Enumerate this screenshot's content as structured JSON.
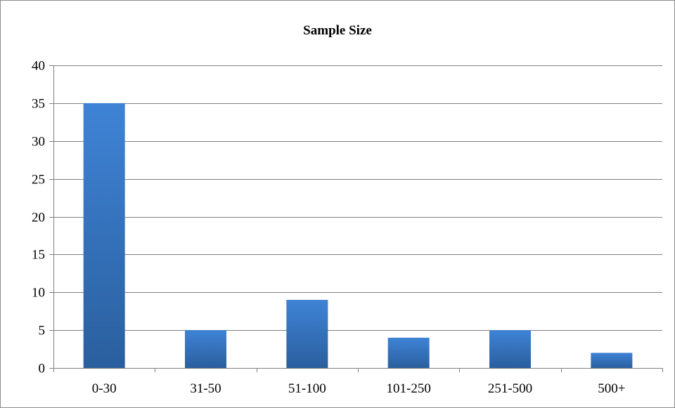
{
  "chart_data": {
    "type": "bar",
    "title": "Sample Size",
    "xlabel": "",
    "ylabel": "",
    "categories": [
      "0-30",
      "31-50",
      "51-100",
      "101-250",
      "251-500",
      "500+"
    ],
    "values": [
      35,
      5,
      9,
      4,
      5,
      2
    ],
    "ylim": [
      0,
      40
    ],
    "yticks": [
      "0",
      "5",
      "10",
      "15",
      "20",
      "25",
      "30",
      "35",
      "40"
    ],
    "grid": true,
    "legend": "none",
    "colors": {
      "bar_top": "#3f83d6",
      "bar_bottom": "#2a5f9e",
      "grid": "#808080",
      "axis": "#808080"
    }
  }
}
